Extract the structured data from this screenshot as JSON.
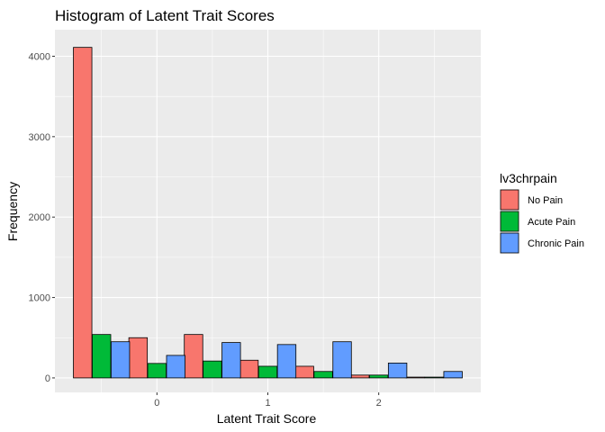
{
  "chart_data": {
    "type": "bar",
    "title": "Histogram of Latent Trait Scores",
    "xlabel": "Latent Trait Score",
    "ylabel": "Frequency",
    "bin_width": 1.0,
    "bin_centers": [
      -0.5,
      0.5,
      1.5,
      2.5
    ],
    "xlim": [
      -0.92,
      2.92
    ],
    "ylim": [
      -180,
      4330
    ],
    "x_ticks": [
      0,
      1,
      2
    ],
    "y_ticks": [
      0,
      1000,
      2000,
      3000,
      4000
    ],
    "grid": true,
    "legend": {
      "title": "lv3chrpain",
      "position": "right"
    },
    "series": [
      {
        "name": "No Pain",
        "color": "#F8766D",
        "values": [
          4110,
          500,
          540,
          220,
          145,
          35,
          10
        ],
        "bars": [
          {
            "x": -0.67,
            "y": 4110
          },
          {
            "x": -0.17,
            "y": 500
          },
          {
            "x": 0.33,
            "y": 540
          },
          {
            "x": 0.83,
            "y": 220
          },
          {
            "x": 1.33,
            "y": 145
          },
          {
            "x": 1.83,
            "y": 35
          },
          {
            "x": 2.33,
            "y": 10
          }
        ]
      },
      {
        "name": "Acute Pain",
        "color": "#00BA38",
        "bars": [
          {
            "x": -0.5,
            "y": 540
          },
          {
            "x": 0.0,
            "y": 180
          },
          {
            "x": 0.5,
            "y": 210
          },
          {
            "x": 1.0,
            "y": 145
          },
          {
            "x": 1.5,
            "y": 80
          },
          {
            "x": 2.0,
            "y": 35
          },
          {
            "x": 2.5,
            "y": 10
          }
        ]
      },
      {
        "name": "Chronic Pain",
        "color": "#619CFF",
        "bars": [
          {
            "x": -0.33,
            "y": 450
          },
          {
            "x": 0.17,
            "y": 280
          },
          {
            "x": 0.67,
            "y": 440
          },
          {
            "x": 1.17,
            "y": 415
          },
          {
            "x": 1.67,
            "y": 450
          },
          {
            "x": 2.17,
            "y": 185
          },
          {
            "x": 2.67,
            "y": 80
          }
        ]
      }
    ],
    "bar_width": 0.1667
  }
}
